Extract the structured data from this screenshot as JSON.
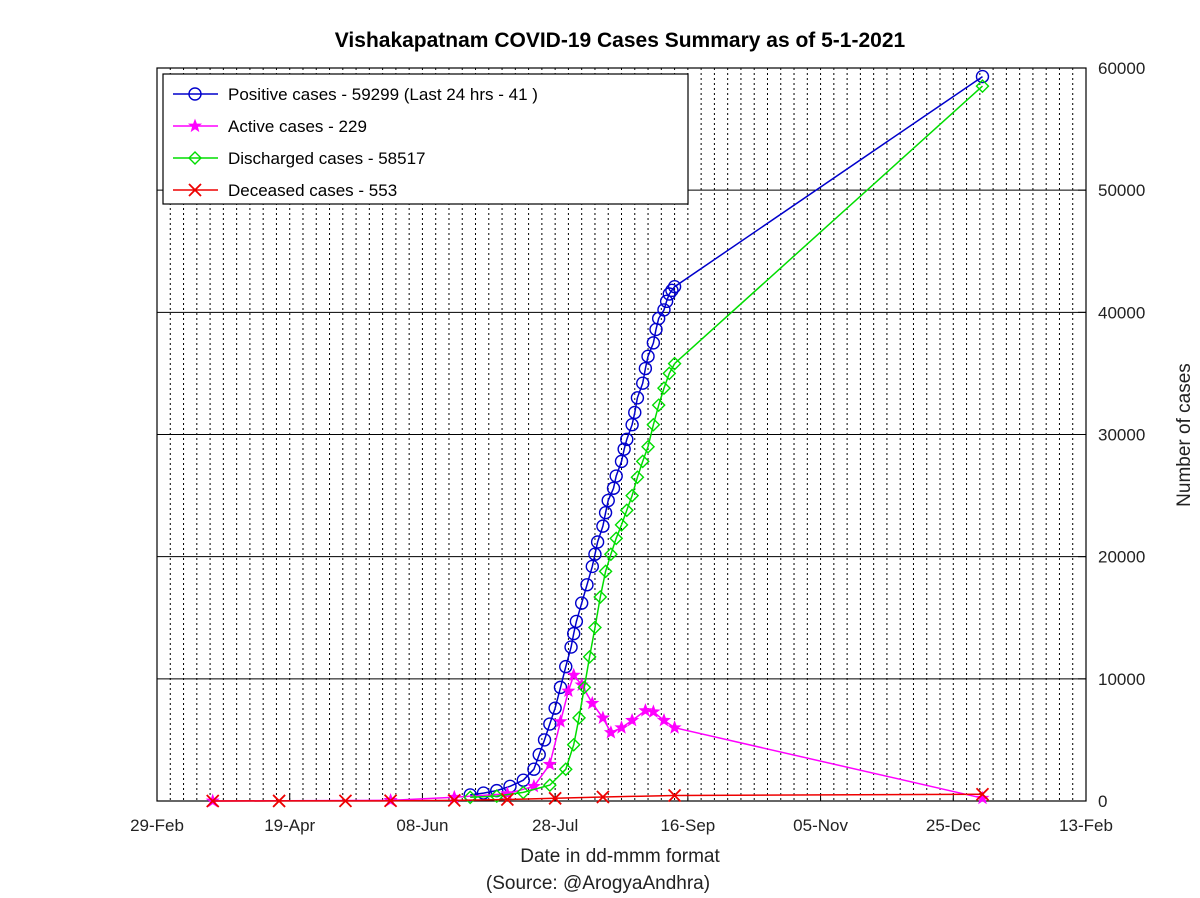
{
  "chart_data": {
    "type": "line",
    "title": "Vishakapatnam COVID-19 Cases Summary as of 5-1-2021",
    "xlabel": "Date in dd-mmm format",
    "xlabel_note": "(Source: @ArogyaAndhra)",
    "ylabel": "Number of cases",
    "x_axis": "date",
    "xlim": [
      "2020-02-29",
      "2021-02-13"
    ],
    "ylim": [
      0,
      60000
    ],
    "x_ticks": [
      "29-Feb",
      "19-Apr",
      "08-Jun",
      "28-Jul",
      "16-Sep",
      "05-Nov",
      "25-Dec",
      "13-Feb"
    ],
    "y_ticks": [
      "0",
      "10000",
      "20000",
      "30000",
      "40000",
      "50000",
      "60000"
    ],
    "y_axis_side": "right",
    "grid": {
      "x_minor": "dotted",
      "y_major": "solid"
    },
    "legend_position": "top-left",
    "series": [
      {
        "name": "Positive cases - 59299 (Last 24 hrs - 41 )",
        "color": "#0000cc",
        "marker": "circle",
        "points": [
          [
            "2020-06-26",
            500
          ],
          [
            "2020-07-01",
            650
          ],
          [
            "2020-07-06",
            850
          ],
          [
            "2020-07-11",
            1200
          ],
          [
            "2020-07-16",
            1700
          ],
          [
            "2020-07-20",
            2600
          ],
          [
            "2020-07-22",
            3800
          ],
          [
            "2020-07-24",
            5000
          ],
          [
            "2020-07-26",
            6300
          ],
          [
            "2020-07-28",
            7600
          ],
          [
            "2020-07-30",
            9300
          ],
          [
            "2020-08-01",
            11000
          ],
          [
            "2020-08-03",
            12600
          ],
          [
            "2020-08-04",
            13700
          ],
          [
            "2020-08-05",
            14700
          ],
          [
            "2020-08-07",
            16200
          ],
          [
            "2020-08-09",
            17700
          ],
          [
            "2020-08-11",
            19200
          ],
          [
            "2020-08-12",
            20200
          ],
          [
            "2020-08-13",
            21200
          ],
          [
            "2020-08-15",
            22500
          ],
          [
            "2020-08-16",
            23600
          ],
          [
            "2020-08-17",
            24600
          ],
          [
            "2020-08-19",
            25600
          ],
          [
            "2020-08-20",
            26600
          ],
          [
            "2020-08-22",
            27800
          ],
          [
            "2020-08-23",
            28800
          ],
          [
            "2020-08-24",
            29600
          ],
          [
            "2020-08-26",
            30800
          ],
          [
            "2020-08-27",
            31800
          ],
          [
            "2020-08-28",
            33000
          ],
          [
            "2020-08-30",
            34200
          ],
          [
            "2020-08-31",
            35400
          ],
          [
            "2020-09-01",
            36400
          ],
          [
            "2020-09-03",
            37500
          ],
          [
            "2020-09-04",
            38600
          ],
          [
            "2020-09-05",
            39500
          ],
          [
            "2020-09-07",
            40200
          ],
          [
            "2020-09-08",
            40900
          ],
          [
            "2020-09-09",
            41500
          ],
          [
            "2020-09-10",
            41800
          ],
          [
            "2020-09-11",
            42100
          ],
          [
            "2021-01-05",
            59299
          ]
        ]
      },
      {
        "name": "Active cases - 229",
        "color": "#ff00ff",
        "marker": "star",
        "points": [
          [
            "2020-03-21",
            0
          ],
          [
            "2020-05-27",
            50
          ],
          [
            "2020-06-20",
            300
          ],
          [
            "2020-07-10",
            600
          ],
          [
            "2020-07-20",
            1200
          ],
          [
            "2020-07-26",
            3000
          ],
          [
            "2020-07-30",
            6500
          ],
          [
            "2020-08-02",
            9000
          ],
          [
            "2020-08-04",
            10300
          ],
          [
            "2020-08-07",
            9500
          ],
          [
            "2020-08-11",
            8000
          ],
          [
            "2020-08-15",
            6800
          ],
          [
            "2020-08-18",
            5600
          ],
          [
            "2020-08-22",
            6000
          ],
          [
            "2020-08-26",
            6600
          ],
          [
            "2020-08-31",
            7400
          ],
          [
            "2020-09-03",
            7300
          ],
          [
            "2020-09-07",
            6600
          ],
          [
            "2020-09-11",
            6000
          ],
          [
            "2021-01-05",
            229
          ]
        ]
      },
      {
        "name": "Discharged cases - 58517",
        "color": "#00dd00",
        "marker": "diamond",
        "points": [
          [
            "2020-06-26",
            300
          ],
          [
            "2020-07-06",
            400
          ],
          [
            "2020-07-16",
            700
          ],
          [
            "2020-07-26",
            1300
          ],
          [
            "2020-08-01",
            2600
          ],
          [
            "2020-08-04",
            4600
          ],
          [
            "2020-08-06",
            6800
          ],
          [
            "2020-08-08",
            9300
          ],
          [
            "2020-08-10",
            11800
          ],
          [
            "2020-08-12",
            14200
          ],
          [
            "2020-08-14",
            16700
          ],
          [
            "2020-08-16",
            18800
          ],
          [
            "2020-08-18",
            20200
          ],
          [
            "2020-08-20",
            21500
          ],
          [
            "2020-08-22",
            22600
          ],
          [
            "2020-08-24",
            23800
          ],
          [
            "2020-08-26",
            25000
          ],
          [
            "2020-08-28",
            26500
          ],
          [
            "2020-08-30",
            27800
          ],
          [
            "2020-09-01",
            29000
          ],
          [
            "2020-09-03",
            30800
          ],
          [
            "2020-09-05",
            32400
          ],
          [
            "2020-09-07",
            33800
          ],
          [
            "2020-09-09",
            35000
          ],
          [
            "2020-09-11",
            35800
          ],
          [
            "2021-01-05",
            58517
          ]
        ]
      },
      {
        "name": "Deceased cases - 553",
        "color": "#ee0000",
        "marker": "x",
        "points": [
          [
            "2020-03-21",
            0
          ],
          [
            "2020-04-15",
            5
          ],
          [
            "2020-05-10",
            10
          ],
          [
            "2020-05-27",
            20
          ],
          [
            "2020-06-20",
            50
          ],
          [
            "2020-07-10",
            120
          ],
          [
            "2020-07-28",
            220
          ],
          [
            "2020-08-15",
            330
          ],
          [
            "2020-09-11",
            450
          ],
          [
            "2021-01-05",
            553
          ]
        ]
      }
    ]
  }
}
